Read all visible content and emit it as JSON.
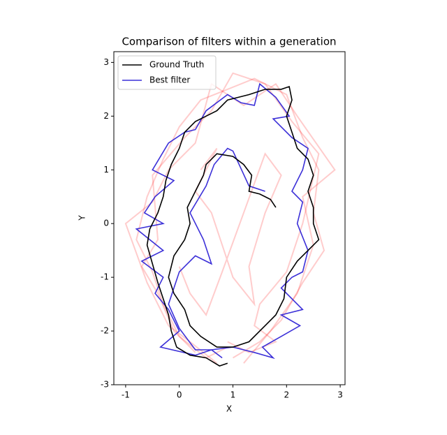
{
  "chart_data": {
    "type": "line",
    "title": "Comparison of filters within a generation",
    "xlabel": "X",
    "ylabel": "Y",
    "xlim": [
      -1.22,
      3.09
    ],
    "ylim": [
      -3,
      3.2
    ],
    "xticks": [
      -1,
      0,
      1,
      2,
      3
    ],
    "yticks": [
      -3,
      -2,
      -1,
      0,
      1,
      2,
      3
    ],
    "legend": "upper left",
    "series": [
      {
        "name": "Ground Truth",
        "color": "#000000",
        "x": [
          0.9,
          0.75,
          0.5,
          0.2,
          -0.05,
          -0.15,
          -0.2,
          -0.3,
          -0.4,
          -0.5,
          -0.6,
          -0.55,
          -0.4,
          -0.3,
          -0.25,
          -0.15,
          0.0,
          0.1,
          0.3,
          0.5,
          0.7,
          0.9,
          1.1,
          1.3,
          1.6,
          1.9,
          2.05,
          2.1,
          2.0,
          2.1,
          2.2,
          2.4,
          2.5,
          2.4,
          2.5,
          2.5,
          2.6,
          2.4,
          2.2,
          2.0,
          1.95,
          1.8,
          1.5,
          1.3,
          1.0,
          0.7,
          0.4,
          0.2,
          0.1,
          -0.1,
          -0.2,
          -0.1,
          0.1,
          0.2,
          0.15,
          0.3,
          0.45,
          0.5,
          0.7,
          1.0,
          1.2,
          1.35,
          1.3,
          1.5,
          1.7,
          1.8
        ],
        "y": [
          -2.6,
          -2.65,
          -2.5,
          -2.45,
          -2.3,
          -2.0,
          -1.7,
          -1.4,
          -1.1,
          -0.75,
          -0.4,
          -0.1,
          0.2,
          0.5,
          0.8,
          1.1,
          1.4,
          1.7,
          1.9,
          2.0,
          2.1,
          2.3,
          2.35,
          2.4,
          2.5,
          2.5,
          2.55,
          2.3,
          2.0,
          1.7,
          1.4,
          1.2,
          0.9,
          0.6,
          0.3,
          0.0,
          -0.3,
          -0.5,
          -0.7,
          -1.0,
          -1.4,
          -1.7,
          -2.0,
          -2.2,
          -2.3,
          -2.3,
          -2.1,
          -1.9,
          -1.6,
          -1.3,
          -1.0,
          -0.6,
          -0.3,
          0.0,
          0.3,
          0.6,
          0.9,
          1.1,
          1.3,
          1.25,
          1.1,
          0.9,
          0.6,
          0.55,
          0.45,
          0.3
        ]
      },
      {
        "name": "Best filter",
        "color": "#3c30d8",
        "x": [
          0.8,
          0.6,
          0.3,
          -0.35,
          0.0,
          -0.2,
          -0.45,
          -0.3,
          -0.7,
          -0.3,
          -0.8,
          -0.3,
          -0.65,
          -0.45,
          -0.1,
          -0.5,
          -0.2,
          0.1,
          0.3,
          0.5,
          0.9,
          1.15,
          1.4,
          1.5,
          1.8,
          2.05,
          1.75,
          2.1,
          2.4,
          2.3,
          2.1,
          2.3,
          2.2,
          2.4,
          2.3,
          2.1,
          1.9,
          2.3,
          1.9,
          2.25,
          1.9,
          1.55,
          1.75,
          1.4,
          1.2,
          1.0,
          0.6,
          0.3,
          0.0,
          -0.2,
          0.0,
          0.3,
          0.6,
          0.45,
          0.2,
          0.5,
          0.65,
          0.9,
          1.0,
          1.3,
          1.6
        ],
        "y": [
          -2.5,
          -2.35,
          -2.45,
          -2.3,
          -2.0,
          -1.6,
          -1.3,
          -1.0,
          -0.7,
          -0.5,
          -0.1,
          0.0,
          0.2,
          0.5,
          0.8,
          1.0,
          1.5,
          1.7,
          1.75,
          2.1,
          2.4,
          2.25,
          2.2,
          2.6,
          2.35,
          2.0,
          1.95,
          1.6,
          1.4,
          1.0,
          0.6,
          0.4,
          0.0,
          -0.5,
          -0.9,
          -1.0,
          -1.2,
          -1.6,
          -1.7,
          -1.9,
          -2.1,
          -2.3,
          -2.5,
          -2.4,
          -2.35,
          -2.3,
          -2.35,
          -2.35,
          -1.95,
          -1.5,
          -0.9,
          -0.6,
          -0.75,
          -0.3,
          0.2,
          0.7,
          1.1,
          1.4,
          1.35,
          0.7,
          0.6
        ]
      }
    ],
    "filter_color": "#ff0000",
    "filter_opacity": 0.2,
    "filters": [
      {
        "x": [
          0.9,
          0.5,
          0.0,
          -0.3,
          -0.5,
          -0.8,
          -0.6,
          -0.3,
          0.0,
          0.4,
          0.9,
          1.4,
          2.0,
          2.3,
          2.6,
          2.5,
          2.7,
          2.3,
          1.9,
          1.5,
          1.0
        ],
        "y": [
          -2.3,
          -2.5,
          -2.1,
          -1.5,
          -0.9,
          -0.3,
          0.5,
          1.2,
          1.8,
          2.3,
          2.5,
          2.7,
          2.4,
          1.6,
          1.0,
          0.2,
          -0.5,
          -1.1,
          -1.8,
          -2.2,
          -2.5
        ]
      },
      {
        "x": [
          0.7,
          0.2,
          -0.2,
          -0.6,
          -1.0,
          -0.5,
          -0.2,
          0.3,
          0.6,
          1.2,
          1.8,
          2.2,
          2.9,
          2.3,
          2.5,
          2.2,
          1.7,
          1.2
        ],
        "y": [
          -2.6,
          -2.2,
          -1.9,
          -1.1,
          0.0,
          0.4,
          1.0,
          1.5,
          2.6,
          2.2,
          2.6,
          2.0,
          1.0,
          0.5,
          -0.4,
          -1.3,
          -2.0,
          -2.6
        ]
      },
      {
        "x": [
          0.3,
          -0.1,
          -0.4,
          -0.7,
          -0.4,
          -0.5,
          0.1,
          0.6,
          1.0,
          1.6,
          2.1,
          2.6,
          2.3,
          2.0,
          1.5,
          1.4,
          1.8,
          1.3,
          0.9
        ],
        "y": [
          -2.4,
          -2.0,
          -1.3,
          -0.8,
          -0.3,
          0.9,
          1.6,
          2.1,
          2.8,
          2.6,
          1.9,
          1.3,
          0.0,
          -0.9,
          -1.5,
          -1.9,
          -2.2,
          -2.4,
          -2.2
        ]
      },
      {
        "x": [
          0.4,
          0.7,
          0.3,
          0.6,
          1.0,
          1.4,
          1.3,
          1.6,
          1.9,
          1.6,
          1.2,
          0.8,
          0.5,
          0.2,
          0.0
        ],
        "y": [
          1.0,
          1.4,
          0.6,
          0.2,
          -1.0,
          -1.5,
          -0.8,
          0.2,
          0.9,
          1.3,
          0.2,
          -0.9,
          -1.7,
          -1.3,
          -0.8
        ]
      }
    ]
  }
}
